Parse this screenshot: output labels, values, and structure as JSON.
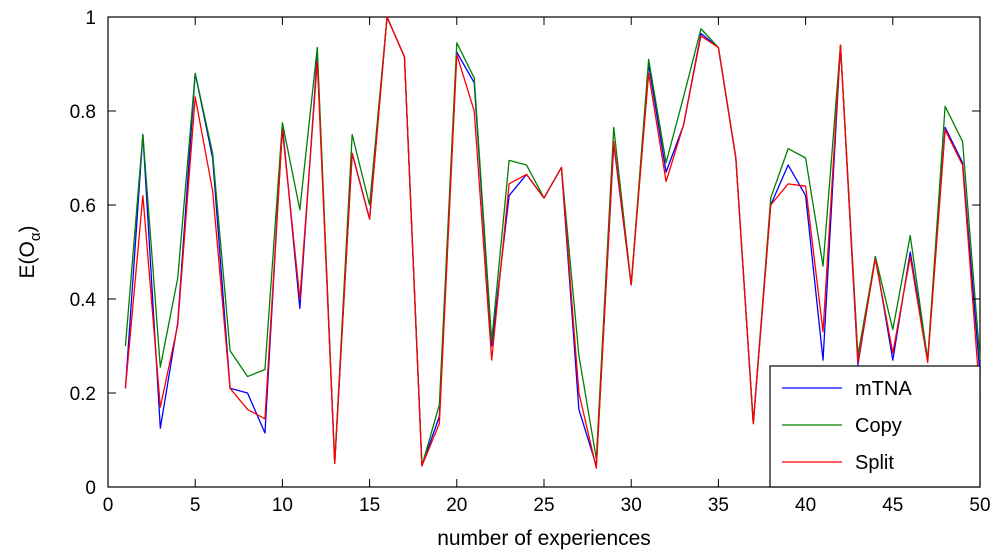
{
  "chart_data": {
    "type": "line",
    "title": "",
    "xlabel": "number of experiences",
    "ylabel_main": "E(O",
    "ylabel_sub": "α",
    "ylabel_close": ")",
    "xlim": [
      0,
      50
    ],
    "ylim": [
      0,
      1
    ],
    "xticks": [
      0,
      5,
      10,
      15,
      20,
      25,
      30,
      35,
      40,
      45,
      50
    ],
    "yticks": [
      0,
      0.2,
      0.4,
      0.6,
      0.8,
      1
    ],
    "ytick_labels": [
      "0",
      "0.2",
      "0.4",
      "0.6",
      "0.8",
      "1"
    ],
    "grid": false,
    "legend_position": "bottom-right",
    "x": [
      1,
      2,
      3,
      4,
      5,
      6,
      7,
      8,
      9,
      10,
      11,
      12,
      13,
      14,
      15,
      16,
      17,
      18,
      19,
      20,
      21,
      22,
      23,
      24,
      25,
      26,
      27,
      28,
      29,
      30,
      31,
      32,
      33,
      34,
      35,
      36,
      37,
      38,
      39,
      40,
      41,
      42,
      43,
      44,
      45,
      46,
      47,
      48,
      49,
      50
    ],
    "series": [
      {
        "name": "mTNA",
        "color": "#0000ff",
        "values": [
          0.21,
          0.75,
          0.125,
          0.35,
          0.88,
          0.7,
          0.21,
          0.2,
          0.115,
          0.77,
          0.38,
          0.92,
          0.05,
          0.71,
          0.57,
          1.0,
          0.915,
          0.045,
          0.15,
          0.925,
          0.86,
          0.3,
          0.62,
          0.665,
          0.615,
          0.68,
          0.165,
          0.045,
          0.73,
          0.43,
          0.9,
          0.67,
          0.77,
          0.965,
          0.935,
          0.7,
          0.135,
          0.6,
          0.685,
          0.62,
          0.27,
          0.94,
          0.26,
          0.49,
          0.27,
          0.5,
          0.27,
          0.765,
          0.69,
          0.24
        ]
      },
      {
        "name": "Copy",
        "color": "#008000",
        "values": [
          0.3,
          0.75,
          0.255,
          0.445,
          0.88,
          0.71,
          0.29,
          0.235,
          0.25,
          0.775,
          0.59,
          0.935,
          0.05,
          0.75,
          0.6,
          1.0,
          0.915,
          0.045,
          0.175,
          0.945,
          0.87,
          0.31,
          0.695,
          0.685,
          0.615,
          0.68,
          0.28,
          0.06,
          0.765,
          0.43,
          0.91,
          0.69,
          0.83,
          0.975,
          0.935,
          0.7,
          0.135,
          0.615,
          0.72,
          0.7,
          0.47,
          0.94,
          0.28,
          0.49,
          0.335,
          0.535,
          0.27,
          0.81,
          0.735,
          0.27
        ]
      },
      {
        "name": "Split",
        "color": "#ff0000",
        "values": [
          0.21,
          0.62,
          0.17,
          0.345,
          0.83,
          0.63,
          0.21,
          0.165,
          0.145,
          0.76,
          0.4,
          0.905,
          0.05,
          0.71,
          0.57,
          1.0,
          0.915,
          0.045,
          0.135,
          0.92,
          0.8,
          0.27,
          0.645,
          0.665,
          0.615,
          0.68,
          0.2,
          0.04,
          0.735,
          0.43,
          0.88,
          0.65,
          0.77,
          0.96,
          0.935,
          0.7,
          0.135,
          0.6,
          0.645,
          0.64,
          0.33,
          0.94,
          0.265,
          0.485,
          0.285,
          0.49,
          0.265,
          0.76,
          0.685,
          0.19
        ]
      }
    ]
  }
}
